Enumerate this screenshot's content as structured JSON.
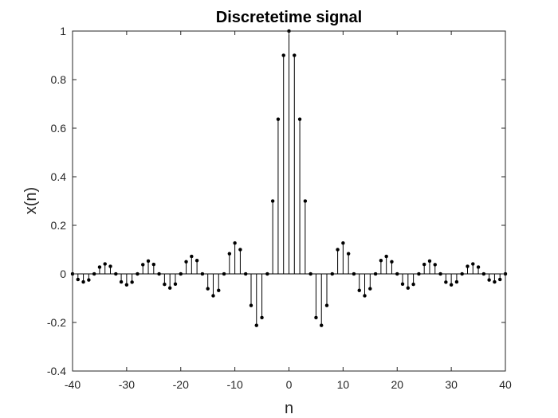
{
  "chart_data": {
    "type": "stem",
    "title": "Discretetime signal",
    "xlabel": "n",
    "ylabel": "x(n)",
    "xlim": [
      -40,
      40
    ],
    "ylim": [
      -0.4,
      1
    ],
    "xticks": [
      -40,
      -30,
      -20,
      -10,
      0,
      10,
      20,
      30,
      40
    ],
    "yticks": [
      -0.4,
      -0.2,
      0,
      0.2,
      0.4,
      0.6,
      0.8,
      1
    ],
    "grid": false,
    "colors": {
      "stem": "#000000",
      "axes": "#262626",
      "background": "#ffffff"
    },
    "series": [
      {
        "x": [
          -40,
          -39,
          -38,
          -37,
          -36,
          -35,
          -34,
          -33,
          -32,
          -31,
          -30,
          -29,
          -28,
          -27,
          -26,
          -25,
          -24,
          -23,
          -22,
          -21,
          -20,
          -19,
          -18,
          -17,
          -16,
          -15,
          -14,
          -13,
          -12,
          -11,
          -10,
          -9,
          -8,
          -7,
          -6,
          -5,
          -4,
          -3,
          -2,
          -1,
          0,
          1,
          2,
          3,
          4,
          5,
          6,
          7,
          8,
          9,
          10,
          11,
          12,
          13,
          14,
          15,
          16,
          17,
          18,
          19,
          20,
          21,
          22,
          23,
          24,
          25,
          26,
          27,
          28,
          29,
          30,
          31,
          32,
          33,
          34,
          35,
          36,
          37,
          38,
          39,
          40
        ],
        "values": [
          0,
          -0.023,
          -0.033,
          -0.025,
          0,
          0.028,
          0.041,
          0.031,
          0,
          -0.033,
          -0.045,
          -0.034,
          0,
          0.038,
          0.053,
          0.039,
          0,
          -0.043,
          -0.058,
          -0.042,
          0,
          0.05,
          0.072,
          0.055,
          0,
          -0.061,
          -0.09,
          -0.068,
          0,
          0.083,
          0.127,
          0.1,
          0,
          -0.13,
          -0.212,
          -0.18,
          0,
          0.3,
          0.637,
          0.9,
          1,
          0.9,
          0.637,
          0.3,
          0,
          -0.18,
          -0.212,
          -0.13,
          0,
          0.1,
          0.127,
          0.083,
          0,
          -0.068,
          -0.09,
          -0.061,
          0,
          0.055,
          0.072,
          0.05,
          0,
          -0.042,
          -0.058,
          -0.043,
          0,
          0.039,
          0.053,
          0.038,
          0,
          -0.034,
          -0.045,
          -0.033,
          0,
          0.031,
          0.041,
          0.028,
          0,
          -0.025,
          -0.033,
          -0.023,
          0
        ]
      }
    ]
  }
}
